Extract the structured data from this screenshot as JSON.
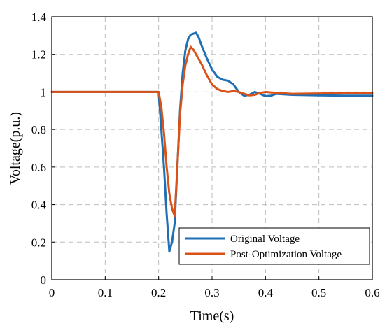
{
  "chart_data": {
    "type": "line",
    "xlabel": "Time(s)",
    "ylabel": "Voltage(p.u.)",
    "xlim": [
      0,
      0.6
    ],
    "ylim": [
      0,
      1.4
    ],
    "xticks": [
      0,
      0.1,
      0.2,
      0.3,
      0.4,
      0.5,
      0.6
    ],
    "yticks": [
      0,
      0.2,
      0.4,
      0.6,
      0.8,
      1,
      1.2,
      1.4
    ],
    "xtick_labels": [
      "0",
      "0.1",
      "0.2",
      "0.3",
      "0.4",
      "0.5",
      "0.6"
    ],
    "ytick_labels": [
      "0",
      "0.2",
      "0.4",
      "0.6",
      "0.8",
      "1",
      "1.2",
      "1.4"
    ],
    "grid": true,
    "legend_position": "bottom-right",
    "series": [
      {
        "name": "Original Voltage",
        "color": "#1f6fb4",
        "x": [
          0,
          0.1,
          0.2,
          0.205,
          0.21,
          0.215,
          0.22,
          0.225,
          0.23,
          0.235,
          0.24,
          0.245,
          0.25,
          0.255,
          0.26,
          0.265,
          0.27,
          0.275,
          0.28,
          0.29,
          0.3,
          0.31,
          0.32,
          0.33,
          0.34,
          0.35,
          0.36,
          0.37,
          0.38,
          0.39,
          0.4,
          0.41,
          0.42,
          0.45,
          0.5,
          0.55,
          0.6
        ],
        "y": [
          1,
          1,
          1,
          0.8,
          0.6,
          0.35,
          0.15,
          0.2,
          0.3,
          0.6,
          0.9,
          1.1,
          1.22,
          1.28,
          1.305,
          1.31,
          1.315,
          1.29,
          1.25,
          1.18,
          1.12,
          1.08,
          1.065,
          1.06,
          1.04,
          1.0,
          0.98,
          0.985,
          1.0,
          0.99,
          0.978,
          0.98,
          0.99,
          0.985,
          0.982,
          0.98,
          0.98
        ]
      },
      {
        "name": "Post-Optimization Voltage",
        "color": "#d95319",
        "x": [
          0,
          0.1,
          0.2,
          0.205,
          0.21,
          0.215,
          0.22,
          0.225,
          0.23,
          0.235,
          0.24,
          0.245,
          0.25,
          0.255,
          0.26,
          0.265,
          0.27,
          0.275,
          0.28,
          0.29,
          0.3,
          0.31,
          0.32,
          0.33,
          0.34,
          0.35,
          0.36,
          0.37,
          0.38,
          0.39,
          0.4,
          0.42,
          0.45,
          0.5,
          0.55,
          0.6
        ],
        "y": [
          1,
          1,
          1,
          0.92,
          0.78,
          0.6,
          0.46,
          0.38,
          0.34,
          0.6,
          0.88,
          1.04,
          1.14,
          1.2,
          1.24,
          1.225,
          1.2,
          1.175,
          1.15,
          1.09,
          1.04,
          1.015,
          1.005,
          1.0,
          1.005,
          1.0,
          0.99,
          0.982,
          0.985,
          0.995,
          1.0,
          0.995,
          0.99,
          0.992,
          0.993,
          0.995
        ]
      }
    ]
  }
}
